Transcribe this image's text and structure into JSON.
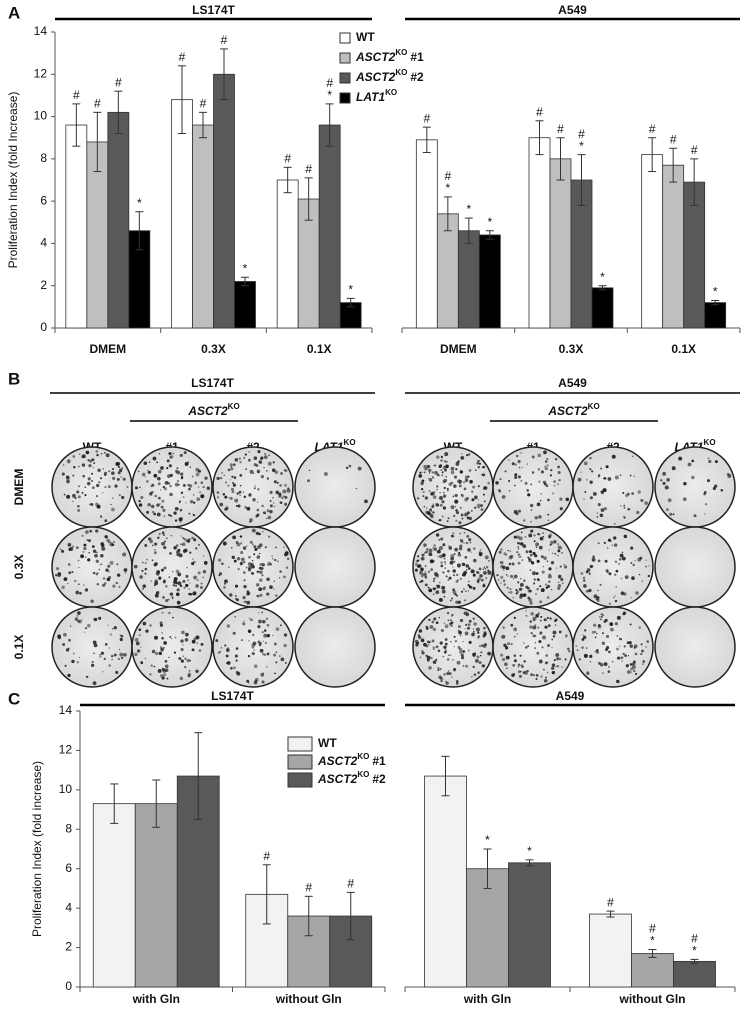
{
  "panel_letters": [
    "A",
    "B",
    "C"
  ],
  "chart_data": [
    {
      "type": "bar",
      "title": "LS174T",
      "y_label": "Proliferation Index (fold Increase)",
      "ylim": [
        0,
        14
      ],
      "yticks": [
        0,
        2,
        4,
        6,
        8,
        10,
        12,
        14
      ],
      "categories": [
        "DMEM",
        "0.3X",
        "0.1X"
      ],
      "series": [
        {
          "name": "WT",
          "color": "#ffffff",
          "values": [
            9.6,
            10.8,
            7.0
          ],
          "errors": [
            1.0,
            1.6,
            0.6
          ],
          "marks": [
            [
              "#"
            ],
            [
              "#"
            ],
            [
              "#"
            ]
          ]
        },
        {
          "name": "ASCT2",
          "name_sup": "KO",
          "name_suffix": "#1",
          "color": "#bfbfbf",
          "values": [
            8.8,
            9.6,
            6.1
          ],
          "errors": [
            1.4,
            0.6,
            1.0
          ],
          "marks": [
            [
              "#"
            ],
            [
              "#"
            ],
            [
              "#"
            ]
          ]
        },
        {
          "name": "ASCT2",
          "name_sup": "KO",
          "name_suffix": "#2",
          "color": "#595959",
          "values": [
            10.2,
            12.0,
            9.6
          ],
          "errors": [
            1.0,
            1.2,
            1.0
          ],
          "marks": [
            [
              "#"
            ],
            [
              "#"
            ],
            [
              "#",
              "*"
            ]
          ]
        },
        {
          "name": "LAT1",
          "name_sup": "KO",
          "color": "#000000",
          "values": [
            4.6,
            2.2,
            1.2
          ],
          "errors": [
            0.9,
            0.2,
            0.2
          ],
          "marks": [
            [
              "*"
            ],
            [
              "*"
            ],
            [
              "*"
            ]
          ]
        }
      ]
    },
    {
      "type": "bar",
      "title": "A549",
      "ylim": [
        0,
        14
      ],
      "categories": [
        "DMEM",
        "0.3X",
        "0.1X"
      ],
      "series": [
        {
          "color": "#ffffff",
          "values": [
            8.9,
            9.0,
            8.2
          ],
          "errors": [
            0.6,
            0.8,
            0.8
          ],
          "marks": [
            [
              "#"
            ],
            [
              "#"
            ],
            [
              "#"
            ]
          ]
        },
        {
          "color": "#bfbfbf",
          "values": [
            5.4,
            8.0,
            7.7
          ],
          "errors": [
            0.8,
            1.0,
            0.8
          ],
          "marks": [
            [
              "#",
              "*"
            ],
            [
              "#"
            ],
            [
              "#"
            ]
          ]
        },
        {
          "color": "#595959",
          "values": [
            4.6,
            7.0,
            6.9
          ],
          "errors": [
            0.6,
            1.2,
            1.1
          ],
          "marks": [
            [
              "*"
            ],
            [
              "#",
              "*"
            ],
            [
              "#"
            ]
          ]
        },
        {
          "color": "#000000",
          "values": [
            4.4,
            1.9,
            1.2
          ],
          "errors": [
            0.2,
            0.1,
            0.1
          ],
          "marks": [
            [
              "*"
            ],
            [
              "*"
            ],
            [
              "*"
            ]
          ]
        }
      ]
    },
    {
      "type": "bar",
      "title": "LS174T",
      "y_label": "Proliferation Index (fold increase)",
      "ylim": [
        0,
        14
      ],
      "yticks": [
        0,
        2,
        4,
        6,
        8,
        10,
        12,
        14
      ],
      "categories": [
        "with Gln",
        "without Gln"
      ],
      "series": [
        {
          "name": "WT",
          "color": "#f2f2f2",
          "values": [
            9.3,
            4.7
          ],
          "errors": [
            1.0,
            1.5
          ],
          "marks": [
            null,
            [
              "#"
            ]
          ]
        },
        {
          "name": "ASCT2",
          "name_sup": "KO",
          "name_suffix": "#1",
          "color": "#a6a6a6",
          "values": [
            9.3,
            3.6
          ],
          "errors": [
            1.2,
            1.0
          ],
          "marks": [
            null,
            [
              "#"
            ]
          ]
        },
        {
          "name": "ASCT2",
          "name_sup": "KO",
          "name_suffix": "#2",
          "color": "#595959",
          "values": [
            10.7,
            3.6
          ],
          "errors": [
            2.2,
            1.2
          ],
          "marks": [
            null,
            [
              "#"
            ]
          ]
        }
      ]
    },
    {
      "type": "bar",
      "title": "A549",
      "ylim": [
        0,
        14
      ],
      "categories": [
        "with Gln",
        "without Gln"
      ],
      "series": [
        {
          "color": "#f2f2f2",
          "values": [
            10.7,
            3.7
          ],
          "errors": [
            1.0,
            0.15
          ],
          "marks": [
            null,
            [
              "#"
            ]
          ]
        },
        {
          "color": "#a6a6a6",
          "values": [
            6.0,
            1.7
          ],
          "errors": [
            1.0,
            0.2
          ],
          "marks": [
            [
              "*"
            ],
            [
              "#",
              "*"
            ]
          ]
        },
        {
          "color": "#595959",
          "values": [
            6.3,
            1.3
          ],
          "errors": [
            0.15,
            0.1
          ],
          "marks": [
            [
              "*"
            ],
            [
              "#",
              "*"
            ]
          ]
        }
      ]
    }
  ],
  "plates": {
    "rows": [
      "DMEM",
      "0.3X",
      "0.1X"
    ],
    "groups": [
      {
        "title": "LS174T",
        "ko_label": {
          "name": "ASCT2",
          "sup": "KO"
        },
        "columns": [
          {
            "name": "WT"
          },
          {
            "name": "#1"
          },
          {
            "name": "#2"
          },
          {
            "name": "LAT1",
            "sup": "KO"
          }
        ]
      },
      {
        "title": "A549",
        "ko_label": {
          "name": "ASCT2",
          "sup": "KO"
        },
        "columns": [
          {
            "name": "WT"
          },
          {
            "name": "#1"
          },
          {
            "name": "#2"
          },
          {
            "name": "LAT1",
            "sup": "KO"
          }
        ]
      }
    ]
  }
}
